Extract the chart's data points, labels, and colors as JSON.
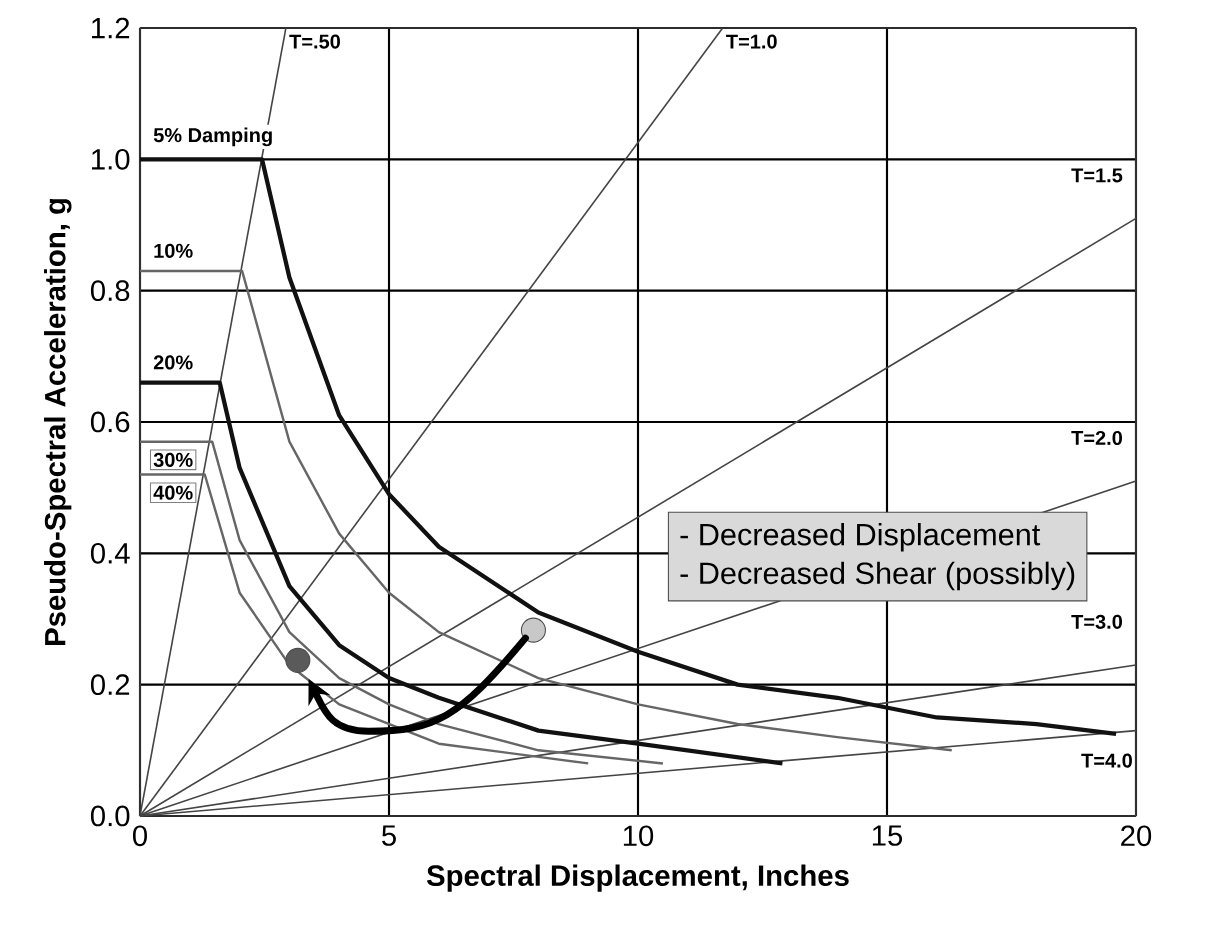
{
  "chart_data": {
    "type": "line",
    "xlabel": "Spectral Displacement, Inches",
    "ylabel": "Pseudo-Spectral Acceleration, g",
    "xlim": [
      0,
      20
    ],
    "ylim": [
      0,
      1.2
    ],
    "xticks": [
      0,
      5,
      10,
      15,
      20
    ],
    "yticks": [
      {
        "value": 0,
        "label": "0.0"
      },
      {
        "value": 0.2,
        "label": "0.2"
      },
      {
        "value": 0.4,
        "label": "0.4"
      },
      {
        "value": 0.6,
        "label": "0.6"
      },
      {
        "value": 0.8,
        "label": "0.8"
      },
      {
        "value": 1.0,
        "label": "1.0"
      },
      {
        "value": 1.2,
        "label": "1.2"
      }
    ],
    "grid": true,
    "legend": false,
    "annotations": [
      "- Decreased Displacement",
      "- Decreased Shear (possibly)"
    ],
    "series": [
      {
        "name": "T=.50",
        "color": "#444444",
        "x": [
          0,
          2.93
        ],
        "values": [
          0,
          1.2
        ]
      },
      {
        "name": "T=1.0",
        "color": "#444444",
        "x": [
          0,
          11.7
        ],
        "values": [
          0,
          1.2
        ]
      },
      {
        "name": "T=1.5",
        "color": "#444444",
        "x": [
          0,
          20
        ],
        "values": [
          0,
          0.91
        ]
      },
      {
        "name": "T=2.0",
        "color": "#444444",
        "x": [
          0,
          20
        ],
        "values": [
          0,
          0.51
        ]
      },
      {
        "name": "T=3.0",
        "color": "#444444",
        "x": [
          0,
          20
        ],
        "values": [
          0,
          0.23
        ]
      },
      {
        "name": "T=4.0",
        "color": "#444444",
        "x": [
          0,
          20
        ],
        "values": [
          0,
          0.13
        ]
      },
      {
        "name": "5% Damping",
        "color": "#111111",
        "x": [
          0,
          2.45,
          3,
          4,
          5,
          6,
          8,
          10,
          12,
          14,
          16,
          18,
          19.6
        ],
        "values": [
          1.0,
          1.0,
          0.82,
          0.61,
          0.49,
          0.41,
          0.31,
          0.25,
          0.2,
          0.18,
          0.15,
          0.14,
          0.125
        ]
      },
      {
        "name": "10%",
        "color": "#666666",
        "x": [
          0,
          2.05,
          3,
          4,
          5,
          6,
          8,
          10,
          12,
          14,
          16.3
        ],
        "values": [
          0.83,
          0.83,
          0.57,
          0.43,
          0.34,
          0.28,
          0.21,
          0.17,
          0.14,
          0.12,
          0.1
        ]
      },
      {
        "name": "20%",
        "color": "#111111",
        "x": [
          0,
          1.6,
          2,
          3,
          4,
          5,
          6,
          8,
          10,
          12.9
        ],
        "values": [
          0.66,
          0.66,
          0.53,
          0.35,
          0.26,
          0.21,
          0.18,
          0.13,
          0.11,
          0.08
        ]
      },
      {
        "name": "30%",
        "color": "#666666",
        "x": [
          0,
          1.45,
          2,
          3,
          4,
          5,
          6,
          8,
          10.5
        ],
        "values": [
          0.57,
          0.57,
          0.42,
          0.28,
          0.21,
          0.17,
          0.14,
          0.1,
          0.08
        ]
      },
      {
        "name": "40%",
        "color": "#666666",
        "x": [
          0,
          1.3,
          2,
          3,
          4,
          5,
          6,
          7,
          9
        ],
        "values": [
          0.52,
          0.52,
          0.34,
          0.23,
          0.17,
          0.14,
          0.11,
          0.1,
          0.08
        ]
      },
      {
        "type": "scatter",
        "marker": "circle",
        "x": [
          7.9,
          3.17
        ],
        "values": [
          0.283,
          0.237
        ],
        "colors": [
          "#c8c8c8",
          "#5a5a5a"
        ]
      }
    ]
  }
}
